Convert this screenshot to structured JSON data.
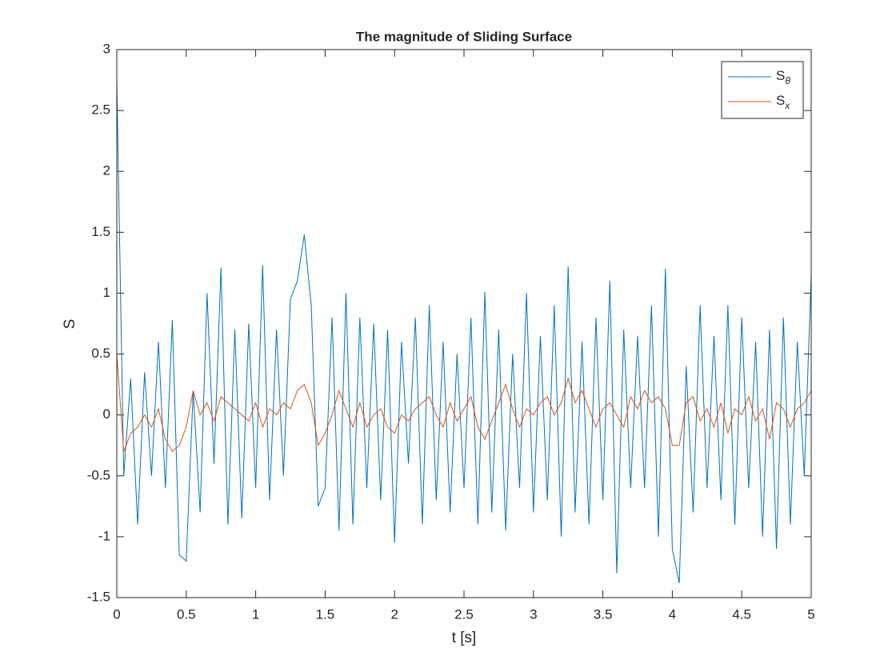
{
  "chart_data": {
    "type": "line",
    "title": "The magnitude of Sliding Surface",
    "xlabel": "t [s]",
    "ylabel": "S",
    "x": [
      0,
      0.05,
      0.1,
      0.15,
      0.2,
      0.25,
      0.3,
      0.35,
      0.4,
      0.45,
      0.5,
      0.55,
      0.6,
      0.65,
      0.7,
      0.75,
      0.8,
      0.85,
      0.9,
      0.95,
      1,
      1.05,
      1.1,
      1.15,
      1.2,
      1.25,
      1.3,
      1.35,
      1.4,
      1.45,
      1.5,
      1.55,
      1.6,
      1.65,
      1.7,
      1.75,
      1.8,
      1.85,
      1.9,
      1.95,
      2,
      2.05,
      2.1,
      2.15,
      2.2,
      2.25,
      2.3,
      2.35,
      2.4,
      2.45,
      2.5,
      2.55,
      2.6,
      2.65,
      2.7,
      2.75,
      2.8,
      2.85,
      2.9,
      2.95,
      3,
      3.05,
      3.1,
      3.15,
      3.2,
      3.25,
      3.3,
      3.35,
      3.4,
      3.45,
      3.5,
      3.55,
      3.6,
      3.65,
      3.7,
      3.75,
      3.8,
      3.85,
      3.9,
      3.95,
      4,
      4.05,
      4.1,
      4.15,
      4.2,
      4.25,
      4.3,
      4.35,
      4.4,
      4.45,
      4.5,
      4.55,
      4.6,
      4.65,
      4.7,
      4.75,
      4.8,
      4.85,
      4.9,
      4.95,
      5
    ],
    "series": [
      {
        "name": "Sθ",
        "color": "#0072bd",
        "values": [
          2.75,
          -0.5,
          0.3,
          -0.9,
          0.35,
          -0.5,
          0.6,
          -0.6,
          0.78,
          -1.15,
          -1.2,
          0.2,
          -0.8,
          1.0,
          -0.4,
          1.21,
          -0.9,
          0.7,
          -0.85,
          0.75,
          -0.6,
          1.23,
          -0.7,
          0.7,
          -0.5,
          0.95,
          1.1,
          1.48,
          0.9,
          -0.75,
          -0.6,
          0.8,
          -0.95,
          1.0,
          -0.9,
          0.8,
          -0.6,
          0.75,
          -0.7,
          0.7,
          -1.05,
          0.6,
          -0.4,
          0.8,
          -0.9,
          0.9,
          -0.7,
          0.6,
          -0.8,
          0.5,
          -0.6,
          0.8,
          -0.9,
          1.01,
          -0.8,
          0.7,
          -0.95,
          0.5,
          -0.6,
          1.0,
          -0.8,
          0.65,
          -0.7,
          0.9,
          -1.0,
          1.22,
          -0.8,
          0.6,
          -0.9,
          0.8,
          -0.7,
          1.1,
          -1.3,
          0.7,
          -0.6,
          0.65,
          -0.6,
          0.9,
          -1.0,
          1.2,
          -1.1,
          -1.38,
          0.4,
          -0.8,
          0.9,
          -0.6,
          0.65,
          -0.7,
          0.9,
          -0.9,
          0.8,
          -0.6,
          0.6,
          -1.0,
          0.7,
          -1.1,
          0.8,
          -0.9,
          0.6,
          -0.5,
          1.15
        ]
      },
      {
        "name": "Sx",
        "color": "#d95319",
        "values": [
          0.5,
          -0.3,
          -0.15,
          -0.1,
          0.0,
          -0.1,
          0.05,
          -0.2,
          -0.3,
          -0.25,
          -0.1,
          0.2,
          0.0,
          0.1,
          -0.05,
          0.15,
          0.1,
          0.05,
          0.0,
          -0.05,
          0.1,
          -0.1,
          0.05,
          0.0,
          0.1,
          0.05,
          0.2,
          0.25,
          0.1,
          -0.25,
          -0.15,
          0.0,
          0.2,
          0.05,
          -0.1,
          0.1,
          -0.1,
          0.0,
          0.05,
          -0.1,
          -0.15,
          0.0,
          -0.05,
          0.05,
          0.1,
          0.15,
          0.0,
          -0.1,
          0.1,
          -0.05,
          0.05,
          0.15,
          -0.1,
          -0.2,
          -0.05,
          0.1,
          0.25,
          0.05,
          -0.1,
          0.05,
          0.0,
          0.1,
          0.15,
          0.0,
          0.1,
          0.3,
          0.1,
          0.2,
          0.05,
          -0.1,
          0.05,
          0.1,
          0.0,
          -0.1,
          0.15,
          0.05,
          0.2,
          0.1,
          0.15,
          0.05,
          -0.25,
          -0.25,
          0.1,
          0.15,
          -0.05,
          0.05,
          -0.1,
          0.1,
          -0.15,
          0.05,
          0.0,
          0.15,
          -0.05,
          0.05,
          -0.2,
          0.1,
          0.05,
          -0.1,
          0.05,
          0.1,
          0.2
        ]
      }
    ],
    "xlim": [
      0,
      5
    ],
    "xticks": [
      0,
      0.5,
      1,
      1.5,
      2,
      2.5,
      3,
      3.5,
      4,
      4.5,
      5
    ],
    "ylim": [
      -1.5,
      3
    ],
    "yticks": [
      -1.5,
      -1,
      -0.5,
      0,
      0.5,
      1,
      1.5,
      2,
      2.5,
      3
    ],
    "grid": false,
    "legend": "top-right"
  }
}
